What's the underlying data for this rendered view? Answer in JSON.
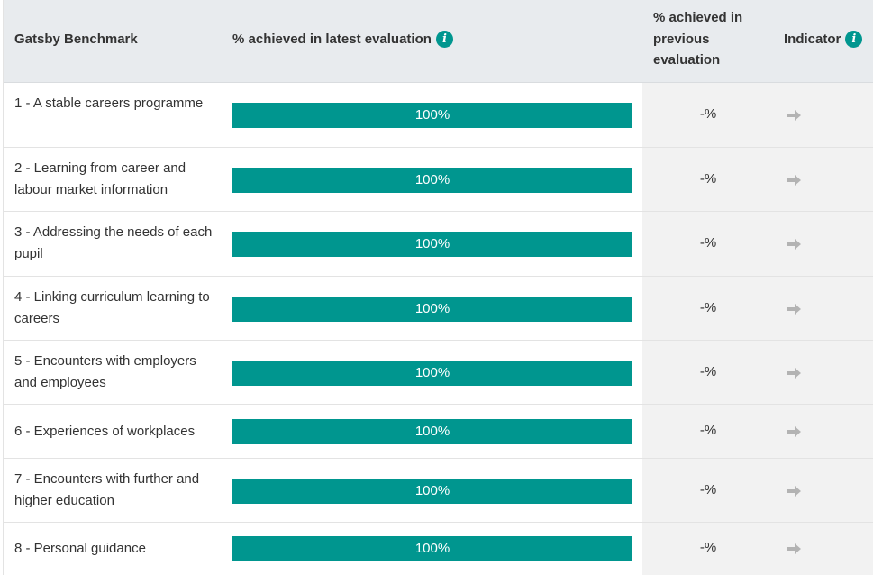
{
  "header": {
    "benchmark": "Gatsby Benchmark",
    "latest": "% achieved in latest evaluation",
    "previous": "% achieved in previous evaluation",
    "indicator": "Indicator"
  },
  "rows": [
    {
      "label": "1 - A stable careers programme",
      "achieved": "100%",
      "achieved_fraction": 1.0,
      "previous": "-%",
      "indicator_icon": "arrow-right-icon"
    },
    {
      "label": "2 - Learning from career and labour market information",
      "achieved": "100%",
      "achieved_fraction": 1.0,
      "previous": "-%",
      "indicator_icon": "arrow-right-icon"
    },
    {
      "label": "3 - Addressing the needs of each pupil",
      "achieved": "100%",
      "achieved_fraction": 1.0,
      "previous": "-%",
      "indicator_icon": "arrow-right-icon"
    },
    {
      "label": "4 - Linking curriculum learning to careers",
      "achieved": "100%",
      "achieved_fraction": 1.0,
      "previous": "-%",
      "indicator_icon": "arrow-right-icon"
    },
    {
      "label": "5 - Encounters with employers and employees",
      "achieved": "100%",
      "achieved_fraction": 1.0,
      "previous": "-%",
      "indicator_icon": "arrow-right-icon"
    },
    {
      "label": "6 - Experiences of workplaces",
      "achieved": "100%",
      "achieved_fraction": 1.0,
      "previous": "-%",
      "indicator_icon": "arrow-right-icon"
    },
    {
      "label": "7 - Encounters with further and higher education",
      "achieved": "100%",
      "achieved_fraction": 1.0,
      "previous": "-%",
      "indicator_icon": "arrow-right-icon"
    },
    {
      "label": "8 - Personal guidance",
      "achieved": "100%",
      "achieved_fraction": 1.0,
      "previous": "-%",
      "indicator_icon": "arrow-right-icon"
    }
  ],
  "colors": {
    "bar": "#00968f",
    "header_bg": "#e8ebee",
    "previous_col_bg": "#f2f2f2",
    "arrow": "#b3b3b3",
    "info_icon": "#00968f"
  }
}
